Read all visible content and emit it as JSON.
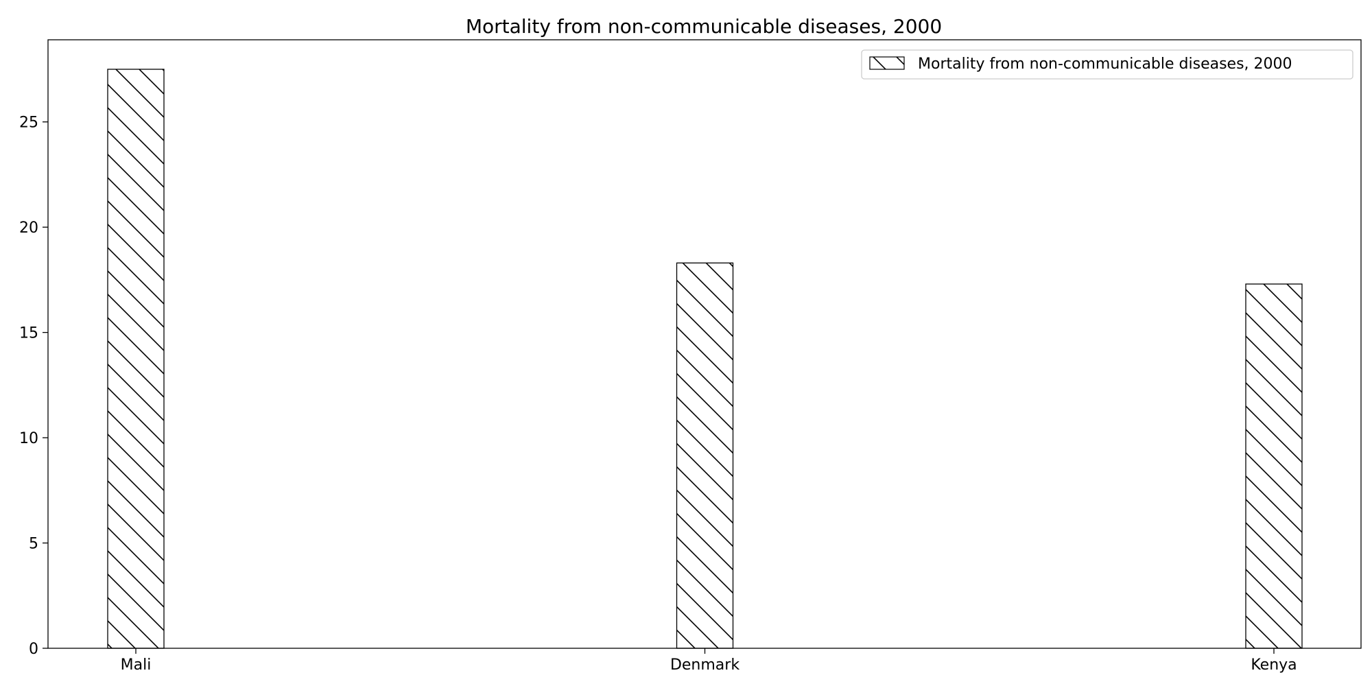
{
  "chart_data": {
    "type": "bar",
    "title": "Mortality from non-communicable diseases, 2000",
    "categories": [
      "Mali",
      "Denmark",
      "Kenya"
    ],
    "series": [
      {
        "name": "Mortality from non-communicable diseases, 2000",
        "values": [
          27.5,
          18.3,
          17.3
        ]
      }
    ],
    "xlabel": "",
    "ylabel": "",
    "ylim": [
      0,
      28.9
    ],
    "yticks": [
      0,
      5,
      10,
      15,
      20,
      25
    ],
    "grid": false,
    "legend_position": "top-right",
    "bar_fill": "hatched",
    "colors": {
      "bar_fill": "#ffffff",
      "bar_edge": "#000000",
      "hatch": "#000000"
    }
  }
}
